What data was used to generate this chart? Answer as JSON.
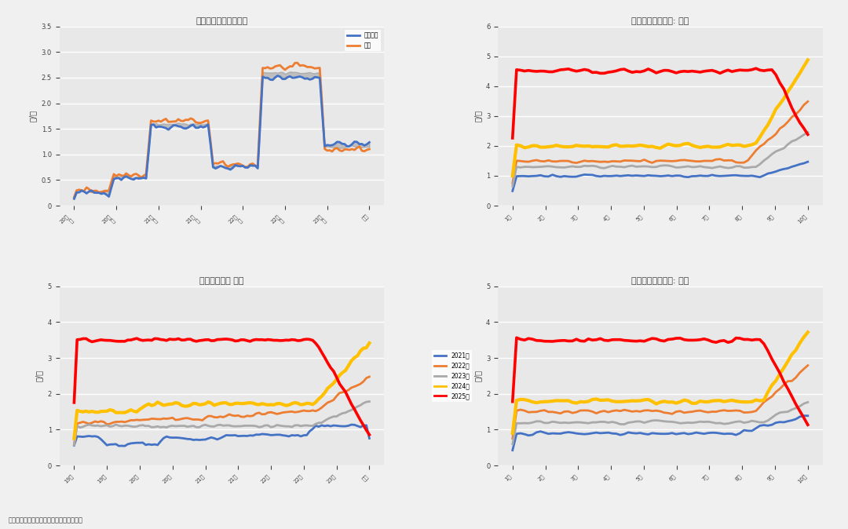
{
  "bg_color": "#F0F0F0",
  "plot_bg": "#E8E8E8",
  "grid_color": "#FFFFFF",
  "line_width": 2.0,
  "font_color": "#404040",
  "legend_labels_tr": [
    "2021年",
    "2022年",
    "2023年",
    "2024年",
    "2025年"
  ],
  "legend_labels_bl": [
    "2021年",
    "2022年",
    "2023年",
    "2024年",
    "2025年"
  ],
  "legend_labels_br": [
    "2021年",
    "2022年",
    "2023年",
    "2024年",
    "2025年"
  ],
  "tl_legend_labels": [
    "产区均价",
    "近期"
  ],
  "c_blue": "#4472C4",
  "c_orange": "#ED7D31",
  "c_gray": "#A9A9A9",
  "c_yellow": "#FFC000",
  "c_red": "#FF0000",
  "c_dgray": "#808080",
  "source_text": "数据来源：我的农产品网、大地期货研究院"
}
